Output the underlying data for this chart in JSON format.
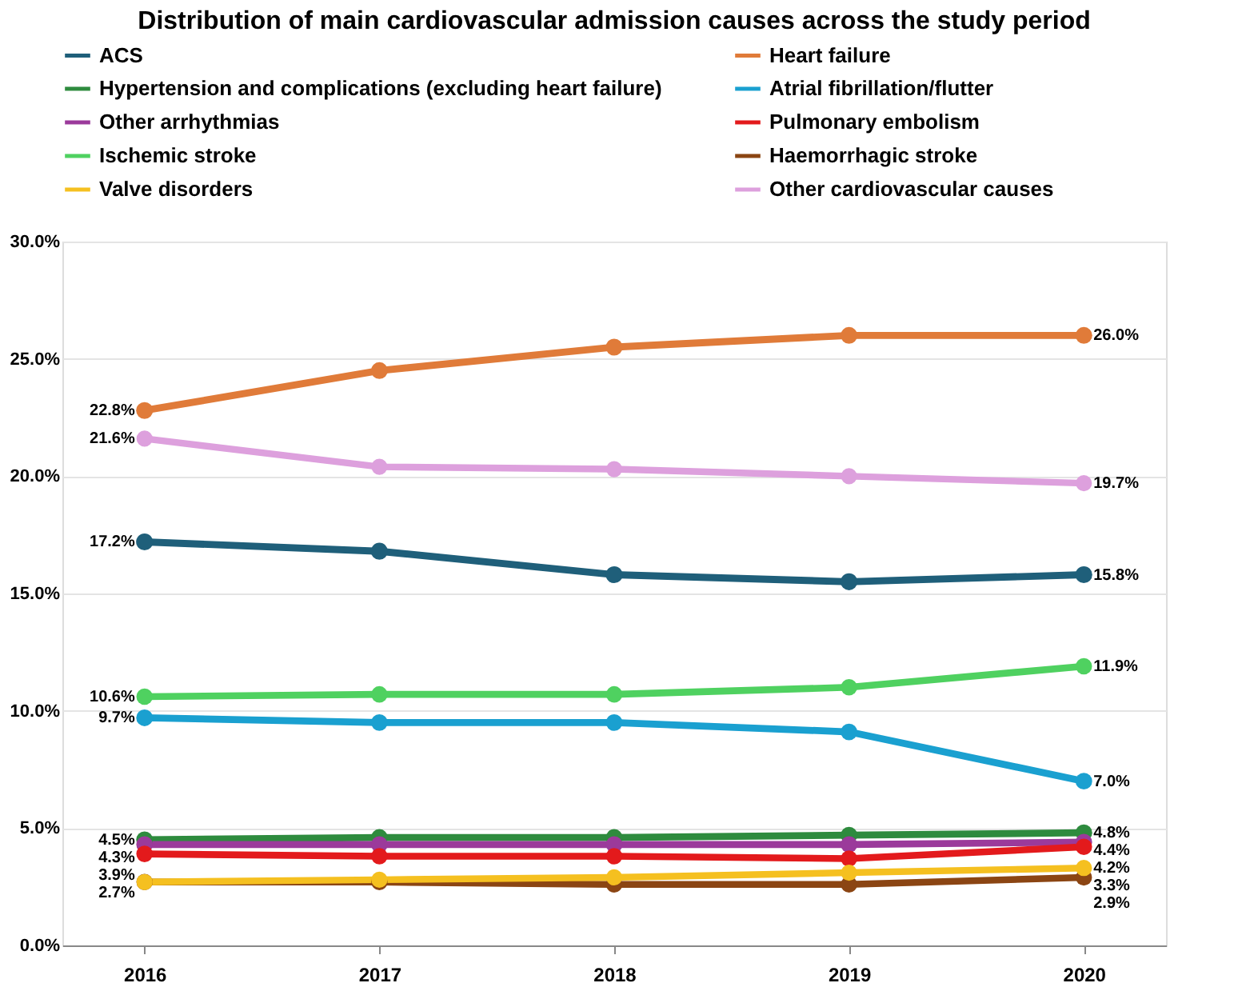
{
  "chart_data": {
    "type": "line",
    "title": "Distribution of main cardiovascular admission causes across the study period",
    "categories": [
      "2016",
      "2017",
      "2018",
      "2019",
      "2020"
    ],
    "ylim": [
      0,
      30
    ],
    "yticks": [
      {
        "value": 0,
        "label": "0.0%"
      },
      {
        "value": 5,
        "label": "5.0%"
      },
      {
        "value": 10,
        "label": "10.0%"
      },
      {
        "value": 15,
        "label": "15.0%"
      },
      {
        "value": 20,
        "label": "20.0%"
      },
      {
        "value": 25,
        "label": "25.0%"
      },
      {
        "value": 30,
        "label": "30.0%"
      }
    ],
    "grid": "y",
    "legend": "top",
    "marker": "circle",
    "line_style": "solid",
    "series": [
      {
        "name": "ACS",
        "color": "#1f5f7a",
        "values": [
          17.2,
          16.8,
          15.8,
          15.5,
          15.8
        ],
        "value_labels": [
          "17.2%",
          null,
          null,
          null,
          "15.8%"
        ]
      },
      {
        "name": "Heart failure",
        "color": "#e07b39",
        "values": [
          22.8,
          24.5,
          25.5,
          26.0,
          26.0
        ],
        "value_labels": [
          "22.8%",
          null,
          null,
          null,
          "26.0%"
        ]
      },
      {
        "name": "Hypertension and complications (excluding heart failure)",
        "color": "#2e8b3e",
        "values": [
          4.5,
          4.6,
          4.6,
          4.7,
          4.8
        ],
        "value_labels": [
          "4.5%",
          null,
          null,
          null,
          "4.8%"
        ]
      },
      {
        "name": "Atrial fibrillation/flutter",
        "color": "#1aa0d0",
        "values": [
          9.7,
          9.5,
          9.5,
          9.1,
          7.0
        ],
        "value_labels": [
          "9.7%",
          null,
          null,
          null,
          "7.0%"
        ]
      },
      {
        "name": "Other arrhythmias",
        "color": "#9b3a9b",
        "values": [
          4.3,
          4.3,
          4.3,
          4.3,
          4.4
        ],
        "value_labels": [
          "4.3%",
          null,
          null,
          null,
          "4.4%"
        ]
      },
      {
        "name": "Pulmonary embolism",
        "color": "#e31a1c",
        "values": [
          3.9,
          3.8,
          3.8,
          3.7,
          4.2
        ],
        "value_labels": [
          "3.9%",
          null,
          null,
          null,
          "4.2%"
        ]
      },
      {
        "name": "Ischemic stroke",
        "color": "#4fd160",
        "values": [
          10.6,
          10.7,
          10.7,
          11.0,
          11.9
        ],
        "value_labels": [
          "10.6%",
          null,
          null,
          null,
          "11.9%"
        ]
      },
      {
        "name": "Haemorrhagic stroke",
        "color": "#8b4513",
        "values": [
          2.7,
          2.7,
          2.6,
          2.6,
          2.9
        ],
        "value_labels": [
          null,
          null,
          null,
          null,
          "2.9%"
        ]
      },
      {
        "name": "Valve disorders",
        "color": "#f5c020",
        "values": [
          2.7,
          2.8,
          2.9,
          3.1,
          3.3
        ],
        "value_labels": [
          "2.7%",
          null,
          null,
          null,
          "3.3%"
        ]
      },
      {
        "name": "Other cardiovascular causes",
        "color": "#dda0dd",
        "values": [
          21.6,
          20.4,
          20.3,
          20.0,
          19.7
        ],
        "value_labels": [
          "21.6%",
          null,
          null,
          null,
          "19.7%"
        ]
      }
    ]
  }
}
